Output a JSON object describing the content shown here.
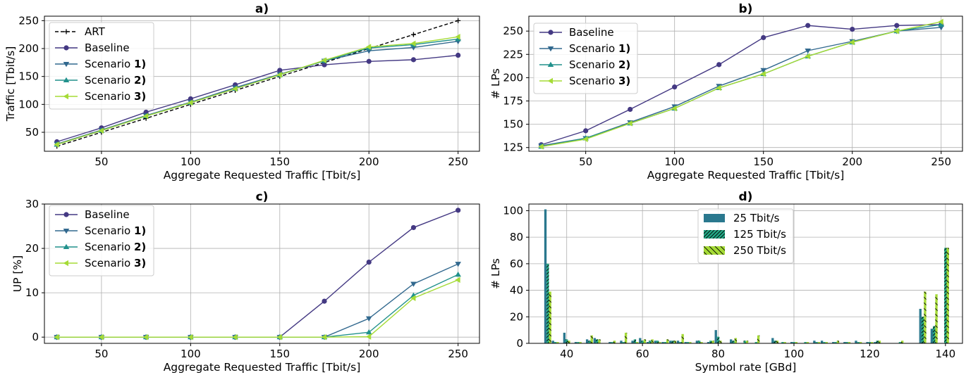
{
  "chart_data": [
    {
      "type": "line",
      "title": "a)",
      "xlabel": "Aggregate Requested Traffic [Tbit/s]",
      "ylabel": "Traffic [Tbit/s]",
      "xlim": [
        18,
        262
      ],
      "ylim": [
        16,
        258
      ],
      "xticks": [
        50,
        100,
        150,
        200,
        250
      ],
      "yticks": [
        50,
        100,
        150,
        200,
        250
      ],
      "grid": true,
      "legend_position": "upper-left",
      "x": [
        25,
        50,
        75,
        100,
        125,
        150,
        175,
        200,
        225,
        250
      ],
      "series": [
        {
          "name": "ART",
          "color": "#000000",
          "dashed": true,
          "marker": "plus",
          "values": [
            25,
            50,
            75,
            100,
            125,
            150,
            175,
            200,
            225,
            250
          ]
        },
        {
          "name": "Baseline",
          "color": "#443983",
          "marker": "circle",
          "values": [
            33,
            58,
            86,
            110,
            135,
            161,
            171,
            177,
            180,
            188
          ]
        },
        {
          "name": "Scenario 1)",
          "color": "#31688e",
          "marker": "triangle-down",
          "values": [
            29,
            54,
            80,
            104,
            130,
            154,
            178,
            196,
            202,
            213
          ]
        },
        {
          "name": "Scenario 2)",
          "color": "#21918c",
          "marker": "triangle-up",
          "values": [
            28,
            53,
            79,
            103,
            128,
            153,
            178,
            201,
            207,
            217
          ]
        },
        {
          "name": "Scenario 3)",
          "color": "#a5db36",
          "marker": "triangle-left",
          "values": [
            28,
            53,
            79,
            103,
            128,
            153,
            179,
            203,
            209,
            221
          ]
        }
      ]
    },
    {
      "type": "line",
      "title": "b)",
      "xlabel": "Aggregate Requested Traffic [Tbit/s]",
      "ylabel": "# LPs",
      "xlim": [
        18,
        262
      ],
      "ylim": [
        121,
        266
      ],
      "xticks": [
        50,
        100,
        150,
        200,
        250
      ],
      "yticks": [
        125,
        150,
        175,
        200,
        225,
        250
      ],
      "grid": true,
      "legend_position": "upper-left",
      "x": [
        25,
        50,
        75,
        100,
        125,
        150,
        175,
        200,
        225,
        250
      ],
      "series": [
        {
          "name": "Baseline",
          "color": "#443983",
          "marker": "circle",
          "values": [
            128,
            143,
            166,
            190,
            214,
            243,
            256,
            252,
            256,
            257
          ]
        },
        {
          "name": "Scenario 1)",
          "color": "#31688e",
          "marker": "triangle-down",
          "values": [
            127,
            135,
            152,
            169,
            191,
            208,
            229,
            239,
            250,
            254
          ]
        },
        {
          "name": "Scenario 2)",
          "color": "#21918c",
          "marker": "triangle-up",
          "values": [
            126,
            135,
            151,
            167,
            189,
            204,
            223,
            238,
            250,
            257
          ]
        },
        {
          "name": "Scenario 3)",
          "color": "#a5db36",
          "marker": "triangle-left",
          "values": [
            126,
            134,
            151,
            167,
            189,
            204,
            223,
            238,
            250,
            260
          ]
        }
      ]
    },
    {
      "type": "line",
      "title": "c)",
      "xlabel": "Aggregate Requested Traffic [Tbit/s]",
      "ylabel": "UP [%]",
      "xlim": [
        18,
        262
      ],
      "ylim": [
        -1.4,
        30
      ],
      "xticks": [
        50,
        100,
        150,
        200,
        250
      ],
      "yticks": [
        0,
        10,
        20,
        30
      ],
      "grid": true,
      "legend_position": "upper-left",
      "x": [
        25,
        50,
        75,
        100,
        125,
        150,
        175,
        200,
        225,
        250
      ],
      "series": [
        {
          "name": "Baseline",
          "color": "#443983",
          "marker": "circle",
          "values": [
            0,
            0,
            0,
            0,
            0,
            0,
            8.1,
            16.9,
            24.7,
            28.6
          ]
        },
        {
          "name": "Scenario 1)",
          "color": "#31688e",
          "marker": "triangle-down",
          "values": [
            0,
            0,
            0,
            0,
            0,
            0,
            0,
            4.2,
            12.0,
            16.5
          ]
        },
        {
          "name": "Scenario 2)",
          "color": "#21918c",
          "marker": "triangle-up",
          "values": [
            0,
            0,
            0,
            0,
            0,
            0,
            0,
            1.1,
            9.4,
            14.1
          ]
        },
        {
          "name": "Scenario 3)",
          "color": "#a5db36",
          "marker": "triangle-left",
          "values": [
            0,
            0,
            0,
            0,
            0,
            0,
            0,
            0.1,
            8.8,
            12.9
          ]
        }
      ]
    },
    {
      "type": "bar",
      "title": "d)",
      "xlabel": "Symbol rate [GBd]",
      "ylabel": "# LPs",
      "xlim": [
        30,
        144.5
      ],
      "ylim": [
        0,
        105
      ],
      "xticks": [
        40,
        60,
        80,
        100,
        120,
        140
      ],
      "yticks": [
        0,
        20,
        40,
        60,
        80,
        100
      ],
      "grid": true,
      "legend_position": "upper-center",
      "x": [
        35,
        37,
        40,
        43,
        46,
        48,
        52,
        55,
        58,
        60,
        62,
        64,
        66,
        68,
        70,
        72,
        75,
        78,
        80,
        84,
        87,
        90,
        95,
        97,
        100,
        103,
        106,
        108,
        111,
        114,
        117,
        120,
        122,
        128,
        134,
        137,
        140
      ],
      "series": [
        {
          "name": "25 Tbit/s",
          "color": "#2a788e",
          "hatch": "none",
          "values": [
            101,
            2,
            8,
            1,
            3,
            4,
            1,
            2,
            2,
            4,
            1,
            2,
            1,
            2,
            2,
            1,
            2,
            1,
            10,
            3,
            0,
            0,
            4,
            0,
            1,
            0,
            2,
            2,
            1,
            1,
            2,
            1,
            1,
            0,
            26,
            11,
            0
          ]
        },
        {
          "name": "125 Tbit/s",
          "color": "#22a884",
          "hatch": "dense-diagonal",
          "values": [
            60,
            1,
            3,
            1,
            2,
            3,
            1,
            1,
            3,
            2,
            2,
            2,
            1,
            2,
            1,
            1,
            2,
            2,
            5,
            2,
            2,
            1,
            2,
            1,
            1,
            1,
            1,
            1,
            1,
            1,
            1,
            1,
            2,
            1,
            20,
            13,
            72
          ]
        },
        {
          "name": "250 Tbit/s",
          "color": "#a5db36",
          "hatch": "sparse-backslash",
          "values": [
            39,
            1,
            2,
            1,
            6,
            3,
            2,
            8,
            1,
            3,
            3,
            1,
            3,
            2,
            7,
            1,
            1,
            2,
            2,
            4,
            2,
            6,
            2,
            1,
            1,
            1,
            1,
            1,
            2,
            1,
            1,
            1,
            2,
            2,
            39,
            37,
            72
          ]
        }
      ]
    }
  ]
}
